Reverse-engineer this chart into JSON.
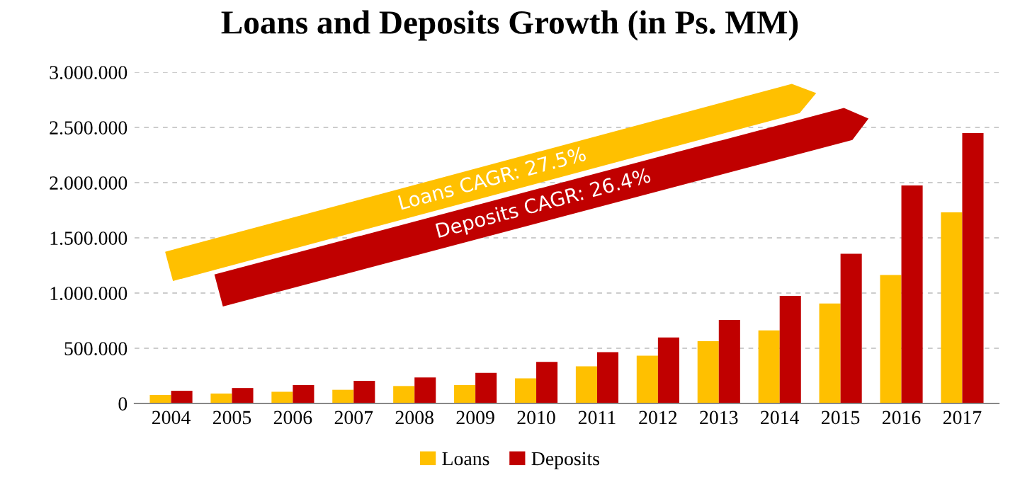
{
  "chart_data": {
    "type": "bar",
    "title": "Loans and Deposits Growth (in Ps. MM)",
    "categories": [
      "2004",
      "2005",
      "2006",
      "2007",
      "2008",
      "2009",
      "2010",
      "2011",
      "2012",
      "2013",
      "2014",
      "2015",
      "2016",
      "2017"
    ],
    "series": [
      {
        "name": "Loans",
        "color": "#ffc000",
        "values": [
          77000,
          90000,
          106000,
          124000,
          158000,
          167000,
          227000,
          337000,
          432000,
          564000,
          662000,
          906000,
          1163000,
          1731000
        ]
      },
      {
        "name": "Deposits",
        "color": "#c00000",
        "values": [
          115000,
          140000,
          167000,
          205000,
          235000,
          278000,
          376000,
          465000,
          598000,
          756000,
          974000,
          1355000,
          1974000,
          2449000
        ]
      }
    ],
    "ylim": [
      0,
      3000000
    ],
    "yticks": [
      0,
      {
        "value": 500000,
        "label": "500.000"
      },
      {
        "value": 1000000,
        "label": "1.000.000"
      },
      {
        "value": 1500000,
        "label": "1.500.000"
      },
      {
        "value": 2000000,
        "label": "2.000.000"
      },
      {
        "value": 2500000,
        "label": "2.500.000"
      },
      {
        "value": 3000000,
        "label": "3.000.000"
      }
    ],
    "grid": "y",
    "legend": "bottom",
    "annotations": [
      "Loans CAGR: 27.5%",
      "Deposits CAGR: 26.4%"
    ]
  }
}
